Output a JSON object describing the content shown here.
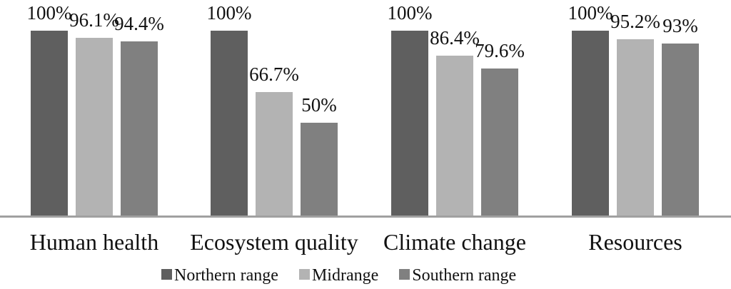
{
  "chart_data": {
    "type": "bar",
    "title": "",
    "xlabel": "",
    "ylabel": "",
    "ylim": [
      0,
      100
    ],
    "grid": false,
    "legend_position": "bottom",
    "axis_line_color": "#a0a0a0",
    "categories": [
      "Human health",
      "Ecosystem quality",
      "Climate change",
      "Resources"
    ],
    "series": [
      {
        "name": "Northern range",
        "color": "#5f5f5f",
        "values": [
          100,
          100,
          100,
          100
        ],
        "labels": [
          "100%",
          "100%",
          "100%",
          "100%"
        ]
      },
      {
        "name": "Midrange",
        "color": "#b3b3b3",
        "values": [
          96.1,
          66.7,
          86.4,
          95.2
        ],
        "labels": [
          "96.1%",
          "66.7%",
          "86.4%",
          "95.2%"
        ]
      },
      {
        "name": "Southern range",
        "color": "#808080",
        "values": [
          94.4,
          50,
          79.6,
          93
        ],
        "labels": [
          "94.4%",
          "50%",
          "79.6%",
          "93%"
        ]
      }
    ]
  }
}
